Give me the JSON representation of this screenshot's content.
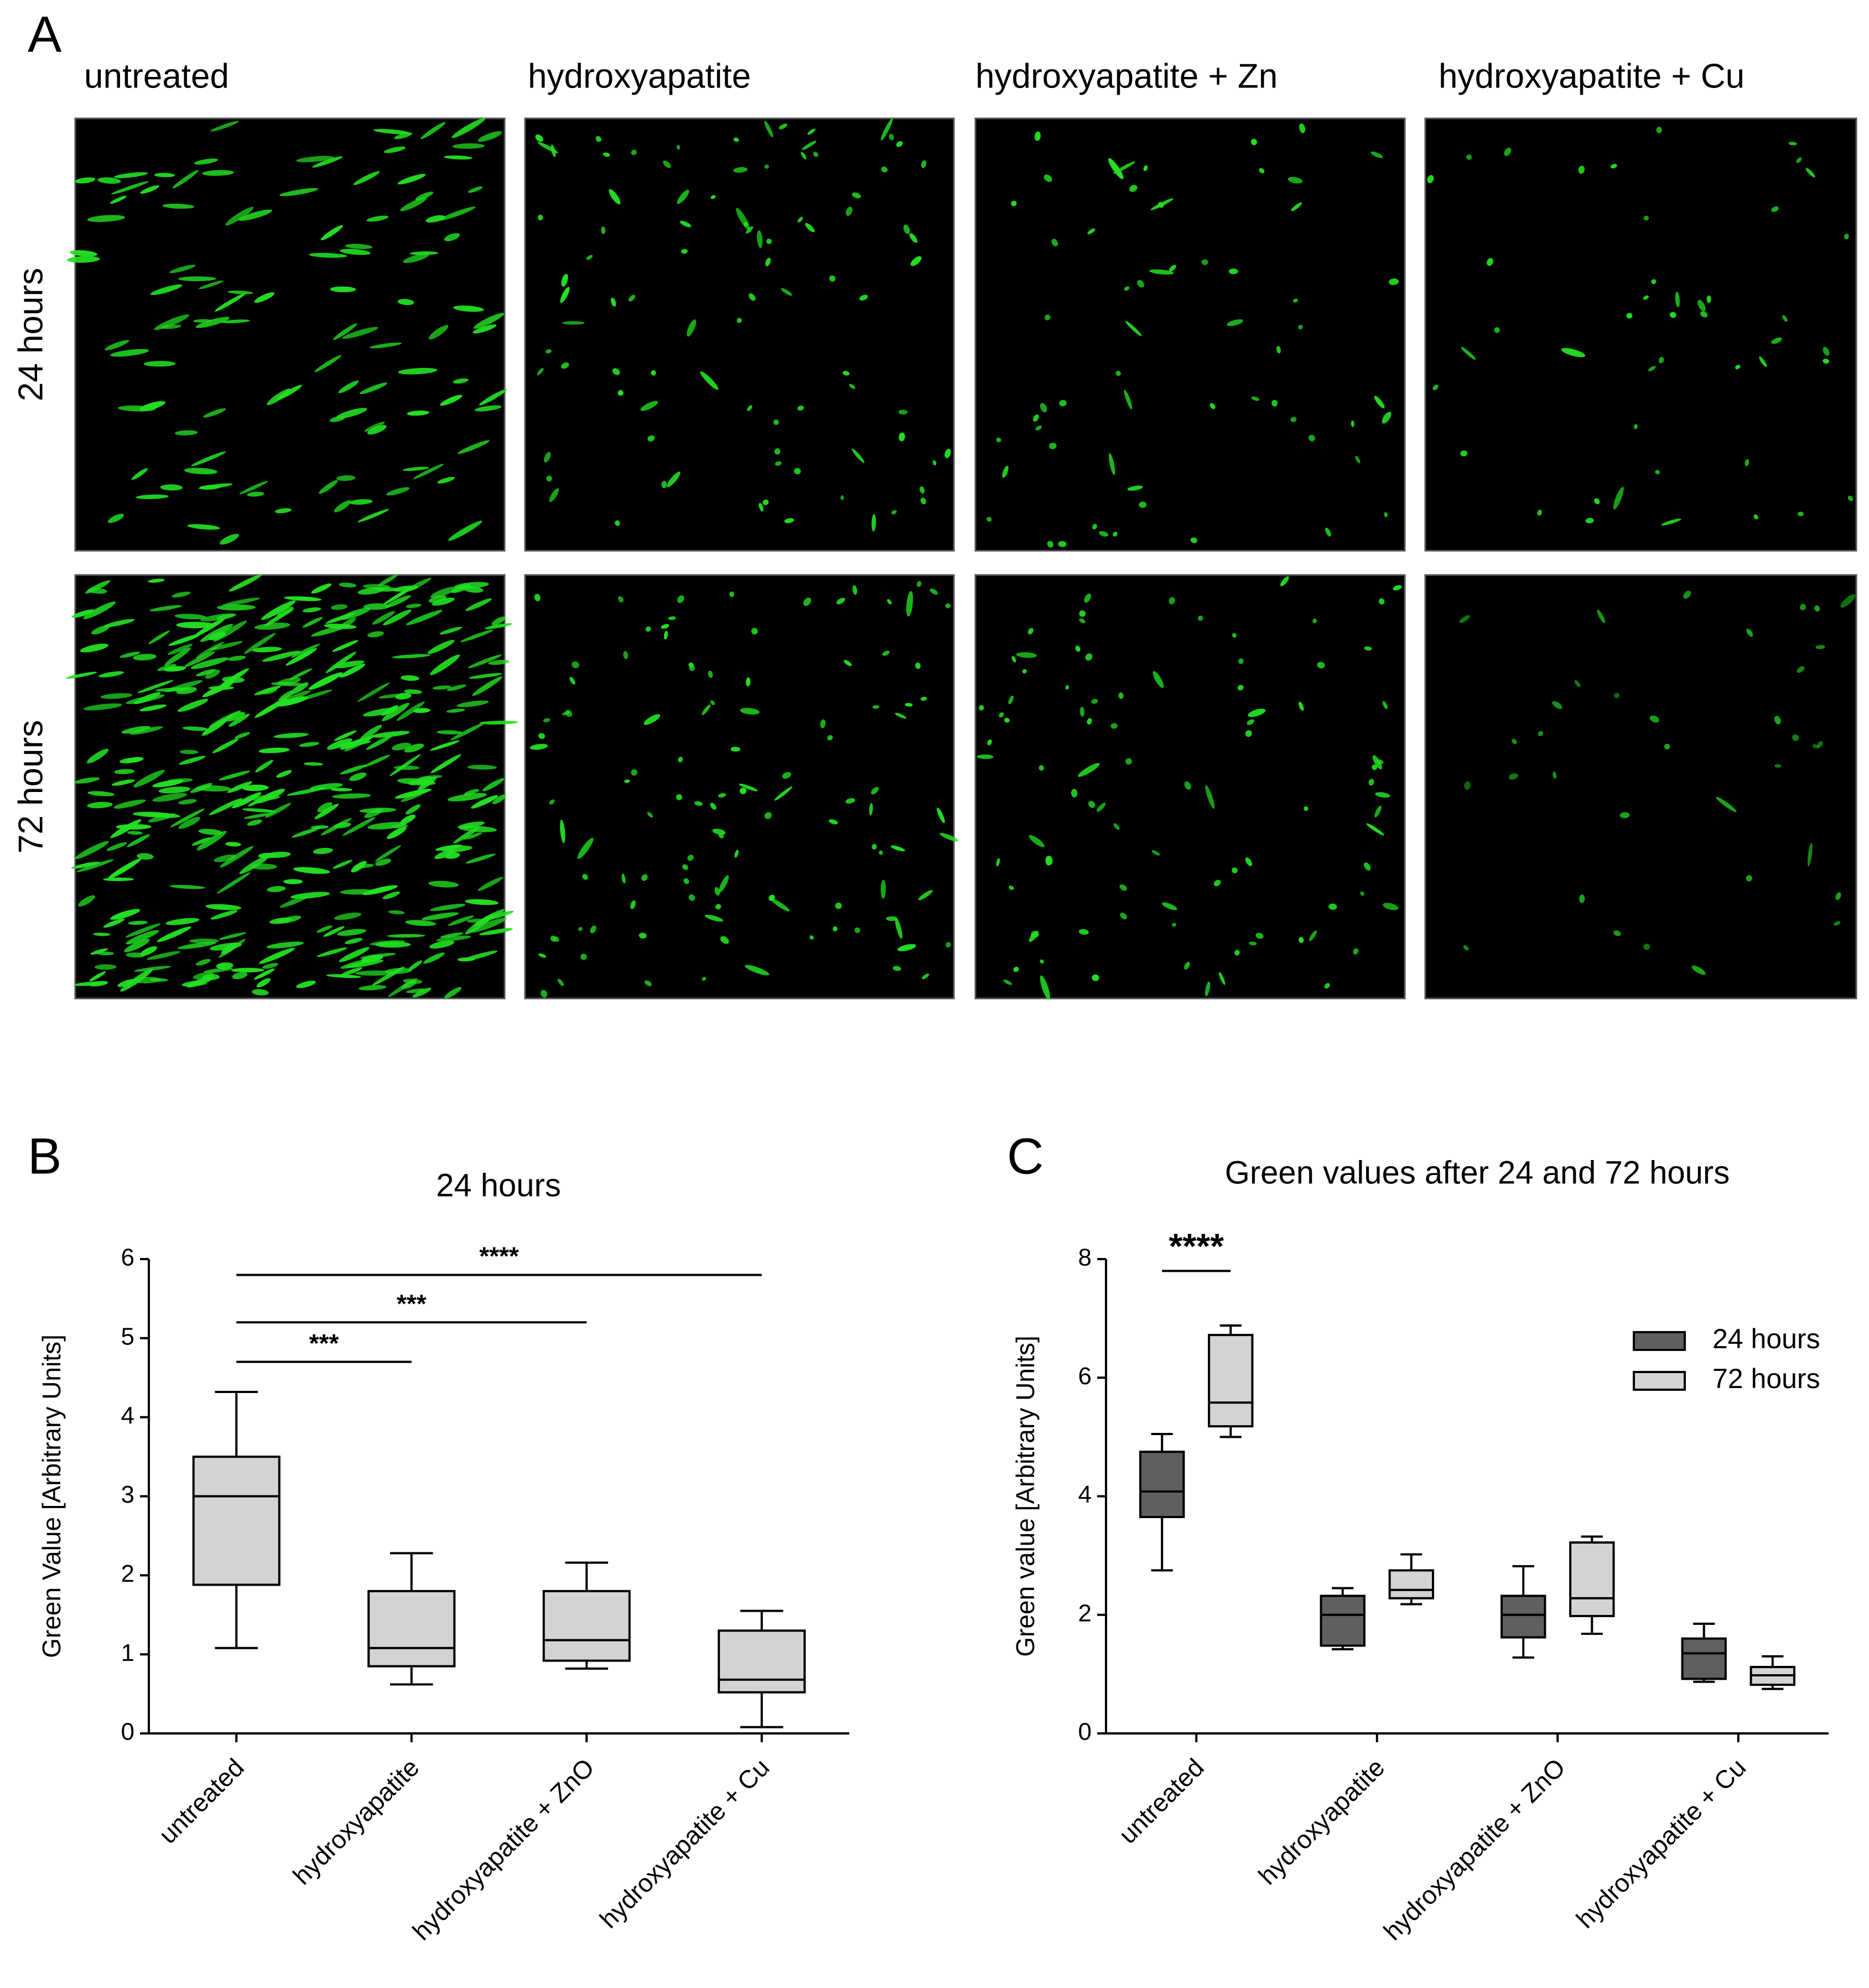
{
  "panel_a": {
    "label": "A",
    "columns": [
      "untreated",
      "hydroxyapatite",
      "hydroxyapatite + Zn",
      "hydroxyapatite + Cu"
    ],
    "rows": [
      "24 hours",
      "72 hours"
    ]
  },
  "chart_data": [
    {
      "type": "box",
      "panel_label": "B",
      "title": "24 hours",
      "y_label": "Green Value [Arbitrary Units]",
      "categories": [
        "untreated",
        "hydroxyapatite",
        "hydroxyapatite + ZnO",
        "hydroxyapatite + Cu"
      ],
      "color": "#d3d3d3",
      "values": [
        {
          "min": 1.08,
          "q1": 1.88,
          "median": 3.0,
          "q3": 3.5,
          "max": 4.32
        },
        {
          "min": 0.62,
          "q1": 0.85,
          "median": 1.08,
          "q3": 1.8,
          "max": 2.28
        },
        {
          "min": 0.82,
          "q1": 0.92,
          "median": 1.18,
          "q3": 1.8,
          "max": 2.16
        },
        {
          "min": 0.08,
          "q1": 0.52,
          "median": 0.68,
          "q3": 1.3,
          "max": 1.55
        }
      ],
      "ylim": [
        0,
        6
      ],
      "yticks": [
        0,
        1,
        2,
        3,
        4,
        5,
        6
      ],
      "annotations": [
        {
          "text": "***",
          "from": "untreated",
          "to": "hydroxyapatite",
          "y": 4.7
        },
        {
          "text": "***",
          "from": "untreated",
          "to": "hydroxyapatite + ZnO",
          "y": 5.2
        },
        {
          "text": "****",
          "from": "untreated",
          "to": "hydroxyapatite + Cu",
          "y": 5.8
        }
      ]
    },
    {
      "type": "box",
      "panel_label": "C",
      "title": "Green values after 24 and 72 hours",
      "y_label": "Green value [Arbitrary Units]",
      "categories": [
        "untreated",
        "hydroxyapatite",
        "hydroxyapatite + ZnO",
        "hydroxyapatite + Cu"
      ],
      "series": [
        {
          "name": "24 hours",
          "color": "#5f5f5f",
          "values": [
            {
              "min": 2.75,
              "q1": 3.65,
              "median": 4.08,
              "q3": 4.75,
              "max": 5.05
            },
            {
              "min": 1.42,
              "q1": 1.48,
              "median": 2.0,
              "q3": 2.32,
              "max": 2.45
            },
            {
              "min": 1.28,
              "q1": 1.62,
              "median": 2.0,
              "q3": 2.32,
              "max": 2.82
            },
            {
              "min": 0.87,
              "q1": 0.92,
              "median": 1.35,
              "q3": 1.6,
              "max": 1.85
            }
          ]
        },
        {
          "name": "72 hours",
          "color": "#d3d3d3",
          "values": [
            {
              "min": 5.0,
              "q1": 5.18,
              "median": 5.58,
              "q3": 6.72,
              "max": 6.88
            },
            {
              "min": 2.18,
              "q1": 2.28,
              "median": 2.42,
              "q3": 2.75,
              "max": 3.02
            },
            {
              "min": 1.68,
              "q1": 1.98,
              "median": 2.28,
              "q3": 3.22,
              "max": 3.32
            },
            {
              "min": 0.75,
              "q1": 0.82,
              "median": 0.98,
              "q3": 1.12,
              "max": 1.3
            }
          ]
        }
      ],
      "ylim": [
        0,
        8
      ],
      "yticks": [
        0,
        2,
        4,
        6,
        8
      ],
      "legend": "upper right",
      "annotations": [
        {
          "text": "****",
          "category": "untreated",
          "y": 7.8
        }
      ]
    }
  ]
}
